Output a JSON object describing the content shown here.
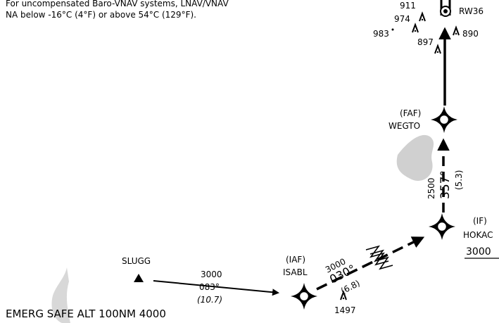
{
  "note": {
    "line1": "For uncompensated Baro-VNAV systems, LNAV/VNAV",
    "line2": "NA below -16°C (4°F) or above 54°C (129°F)."
  },
  "runway": "RW36",
  "obstacles": [
    "911",
    "974",
    "983",
    "897",
    "890",
    "1497"
  ],
  "fixes": {
    "wegto": {
      "role": "(FAF)",
      "name": "WEGTO"
    },
    "hokac": {
      "role": "(IF)",
      "name": "HOKAC",
      "altitude": "3000"
    },
    "isabl": {
      "role": "(IAF)",
      "name": "ISABL"
    },
    "slugg": {
      "name": "SLUGG"
    }
  },
  "legs": {
    "hokac_wegto": {
      "altitude": "2500",
      "course": "357°",
      "distance": "(5.3)"
    },
    "isabl_hokac": {
      "altitude": "3000",
      "course": "030°",
      "distance": "(6.8)"
    },
    "slugg_isabl": {
      "altitude": "3000",
      "course": "083°",
      "distance": "(10.7)"
    }
  },
  "msa": "EMERG SAFE ALT 100NM 4000"
}
